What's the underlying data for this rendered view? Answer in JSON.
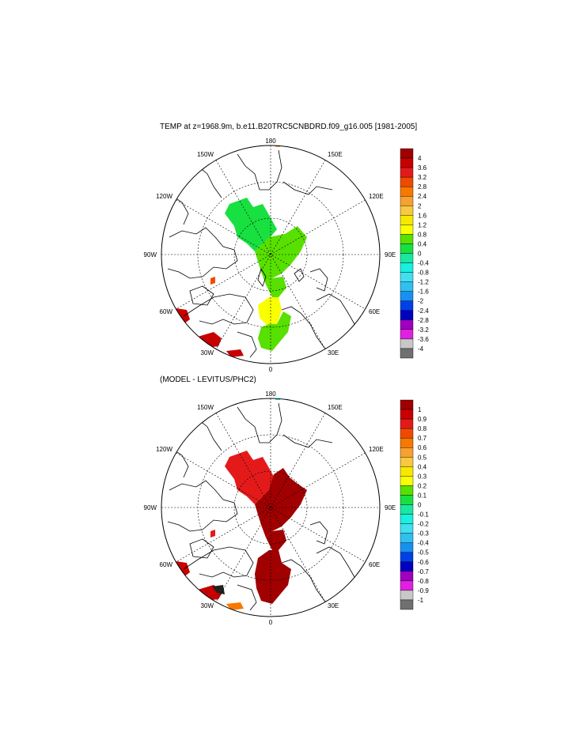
{
  "panel1": {
    "title": "TEMP at z=1968.9m, b.e11.B20TRC5CNBDRD.f09_g16.005 [1981-2005]",
    "lon_labels": [
      "180",
      "150E",
      "120E",
      "90E",
      "60E",
      "30E",
      "0",
      "30W",
      "60W",
      "90W",
      "120W",
      "150W"
    ],
    "colorbar": {
      "labels": [
        "4",
        "3.6",
        "3.2",
        "2.8",
        "2.4",
        "2",
        "1.6",
        "1.2",
        "0.8",
        "0.4",
        "0",
        "-0.4",
        "-0.8",
        "-1.2",
        "-1.6",
        "-2",
        "-2.4",
        "-2.8",
        "-3.2",
        "-3.6",
        "-4"
      ],
      "colors": [
        "#a00000",
        "#c80000",
        "#e41a1a",
        "#f04a00",
        "#f87800",
        "#f8a030",
        "#f8c840",
        "#f8e800",
        "#f8ff00",
        "#58e000",
        "#18e040",
        "#18e8a0",
        "#18f0e0",
        "#40e0f0",
        "#30c0f0",
        "#1890f0",
        "#0040e8",
        "#0000c0",
        "#a000c0",
        "#e020e0",
        "#c8c8c8",
        "#707070"
      ]
    }
  },
  "panel2": {
    "title": "(MODEL - LEVITUS/PHC2)",
    "lon_labels": [
      "180",
      "150E",
      "120E",
      "90E",
      "60E",
      "30E",
      "0",
      "30W",
      "60W",
      "90W",
      "120W",
      "150W"
    ],
    "colorbar": {
      "labels": [
        "1",
        "0.9",
        "0.8",
        "0.7",
        "0.6",
        "0.5",
        "0.4",
        "0.3",
        "0.2",
        "0.1",
        "0",
        "-0.1",
        "-0.2",
        "-0.3",
        "-0.4",
        "-0.5",
        "-0.6",
        "-0.7",
        "-0.8",
        "-0.9",
        "-1"
      ],
      "colors": [
        "#a00000",
        "#c80000",
        "#e41a1a",
        "#f04a00",
        "#f87800",
        "#f8a030",
        "#f8c840",
        "#f8e800",
        "#f8ff00",
        "#58e000",
        "#18e040",
        "#18e8a0",
        "#18f0e0",
        "#40e0f0",
        "#30c0f0",
        "#1890f0",
        "#0040e8",
        "#0000c0",
        "#a000c0",
        "#e020e0",
        "#c8c8c8",
        "#707070"
      ]
    }
  }
}
